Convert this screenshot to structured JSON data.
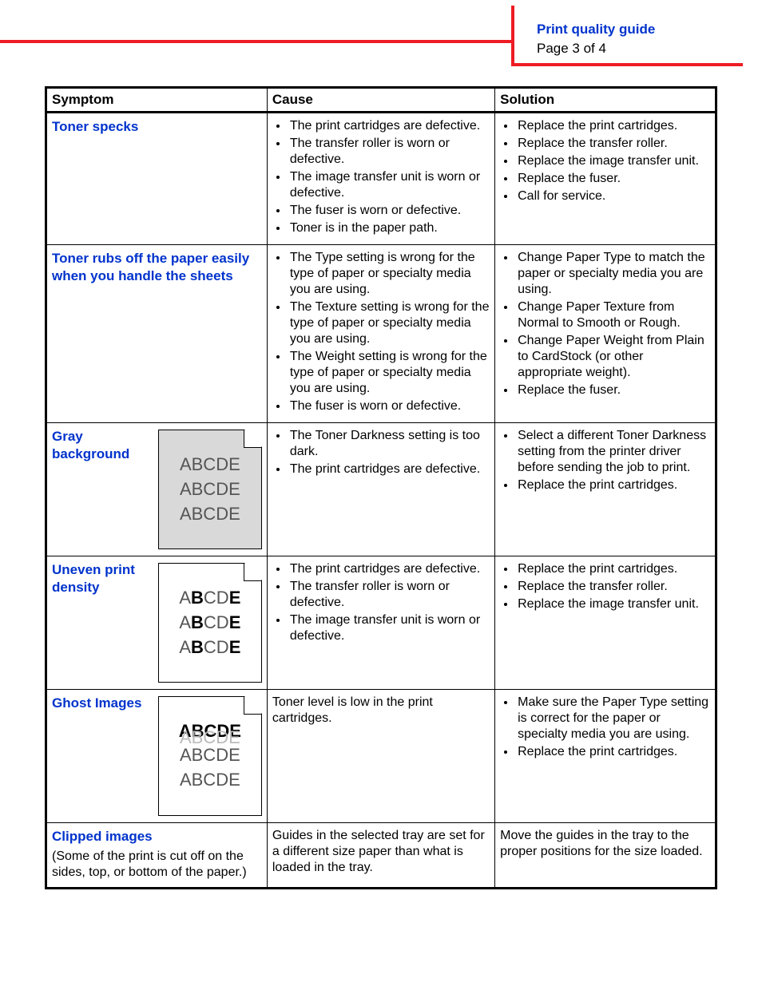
{
  "header": {
    "title": "Print quality guide",
    "page": "Page 3 of 4"
  },
  "colors": {
    "accent_red": "#ed1c24",
    "link_blue": "#0033cc",
    "gray_bg": "#d9d9d9"
  },
  "table": {
    "columns": [
      "Symptom",
      "Cause",
      "Solution"
    ],
    "rows": [
      {
        "symptom": "Toner specks",
        "causes": [
          "The print cartridges are defective.",
          "The transfer roller is worn or defective.",
          "The image transfer unit is worn or defective.",
          "The fuser is worn or defective.",
          "Toner is in the paper path."
        ],
        "solutions": [
          "Replace the print cartridges.",
          "Replace the transfer roller.",
          "Replace the image transfer unit.",
          "Replace the fuser.",
          "Call for service."
        ]
      },
      {
        "symptom": "Toner rubs off the paper easily when you handle the sheets",
        "causes": [
          "The Type setting is wrong for the type of paper or specialty media you are using.",
          "The Texture setting is wrong for the type of paper or specialty media you are using.",
          "The Weight setting is wrong for the type of paper or specialty media you are using.",
          "The fuser is worn or defective."
        ],
        "solutions": [
          "Change Paper Type to match the paper or specialty media you are using.",
          "Change Paper Texture from Normal to Smooth or Rough.",
          "Change Paper Weight from Plain to CardStock (or other appropriate weight).",
          "Replace the fuser."
        ]
      },
      {
        "symptom": "Gray background",
        "icon": "gray",
        "causes": [
          "The Toner Darkness setting is too dark.",
          "The print cartridges are defective."
        ],
        "solutions": [
          "Select a different Toner Darkness setting from the printer driver before sending the job to print.",
          "Replace the print cartridges."
        ]
      },
      {
        "symptom": "Uneven print density",
        "icon": "uneven",
        "causes": [
          "The print cartridges are defective.",
          "The transfer roller is worn or defective.",
          "The image transfer unit is worn or defective."
        ],
        "solutions": [
          "Replace the print cartridges.",
          "Replace the transfer roller.",
          "Replace the image transfer unit."
        ]
      },
      {
        "symptom": "Ghost Images",
        "icon": "ghost",
        "cause_text": "Toner level is low in the print cartridges.",
        "solutions": [
          "Make sure the Paper Type setting is correct for the paper or specialty media you are using.",
          "Replace the print cartridges."
        ]
      },
      {
        "symptom": "Clipped images",
        "symptom_sub": "(Some of the print is cut off on the sides, top, or bottom of the paper.)",
        "cause_text": "Guides in the selected tray are set for a different size paper than what is loaded in the tray.",
        "solution_text": "Move the guides in the tray to the proper positions for the size loaded."
      }
    ]
  },
  "sample_text": "ABCDE"
}
